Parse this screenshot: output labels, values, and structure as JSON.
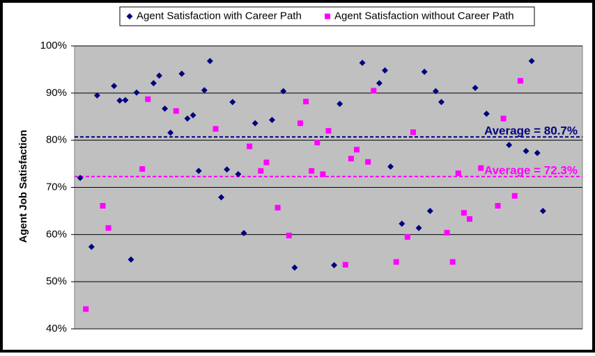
{
  "chart_data": {
    "type": "scatter",
    "y_label": "Agent Job Satisfaction",
    "xlim": [
      0,
      90
    ],
    "ylim": [
      40,
      100
    ],
    "yticks": [
      {
        "value": 40,
        "label": "40%"
      },
      {
        "value": 50,
        "label": "50%"
      },
      {
        "value": 60,
        "label": "60%"
      },
      {
        "value": 70,
        "label": "70%"
      },
      {
        "value": 80,
        "label": "80%"
      },
      {
        "value": 90,
        "label": "90%"
      },
      {
        "value": 100,
        "label": "100%"
      }
    ],
    "grid": true,
    "series": [
      {
        "name": "Agent Satisfaction with Career Path",
        "color": "#000080",
        "marker": "diamond",
        "x": [
          1,
          3,
          4,
          7,
          8,
          9,
          10,
          11,
          14,
          15,
          16,
          17,
          19,
          20,
          21,
          22,
          23,
          24,
          26,
          27,
          28,
          29,
          30,
          32,
          35,
          37,
          39,
          46,
          47,
          51,
          54,
          55,
          56,
          58,
          61,
          62,
          63,
          64,
          65,
          71,
          73,
          77,
          80,
          81,
          82,
          83
        ],
        "values": [
          72,
          57.4,
          89.5,
          91.5,
          88.4,
          88.5,
          54.7,
          90.1,
          92.1,
          93.7,
          86.7,
          81.6,
          94.1,
          84.6,
          85.3,
          73.5,
          90.6,
          96.8,
          67.9,
          73.8,
          88.1,
          72.8,
          60.3,
          83.6,
          84.3,
          90.4,
          53,
          53.5,
          87.7,
          96.4,
          92.1,
          94.8,
          74.4,
          62.3,
          61.4,
          94.5,
          65,
          90.4,
          88.1,
          91.1,
          85.6,
          79,
          77.7,
          96.8,
          77.3,
          65
        ]
      },
      {
        "name": "Agent Satisfaction without Career Path",
        "color": "#ff00ff",
        "marker": "square",
        "x": [
          2,
          5,
          6,
          12,
          13,
          18,
          25,
          31,
          33,
          34,
          36,
          38,
          40,
          41,
          42,
          43,
          44,
          45,
          48,
          49,
          50,
          52,
          53,
          57,
          59,
          60,
          66,
          67,
          68,
          69,
          70,
          72,
          75,
          76,
          78,
          79
        ],
        "values": [
          44.2,
          66.1,
          61.4,
          73.9,
          88.7,
          86.2,
          82.4,
          78.7,
          73.5,
          75.3,
          65.7,
          59.8,
          83.6,
          88.2,
          73.5,
          79.5,
          72.8,
          82,
          53.6,
          76.1,
          78,
          75.4,
          90.5,
          54.2,
          59.5,
          81.7,
          60.4,
          54.2,
          73,
          64.6,
          63.3,
          74.1,
          66.1,
          84.6,
          68.2,
          92.6
        ]
      }
    ],
    "averages": [
      {
        "value": 80.7,
        "label": "Average = 80.7%",
        "color": "#000080"
      },
      {
        "value": 72.3,
        "label": "Average = 72.3%",
        "color": "#ff00ff"
      }
    ]
  }
}
